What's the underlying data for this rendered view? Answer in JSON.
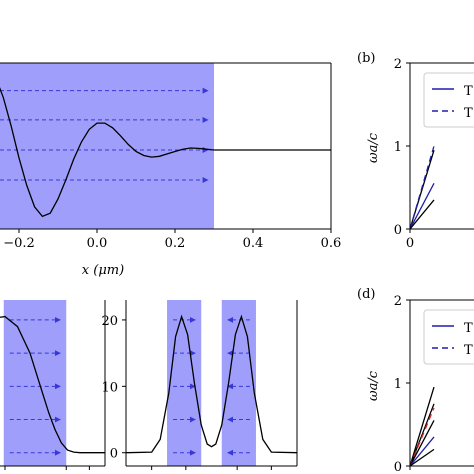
{
  "chart_data": [
    {
      "id": "top-left",
      "type": "line",
      "xlabel": "x (μm)",
      "xlim": [
        -0.3,
        0.6
      ],
      "ylim": [
        -1.0,
        1.1
      ],
      "x_ticks": [
        -0.2,
        0.0,
        0.2,
        0.4,
        0.6
      ],
      "x_tick_labels": [
        "−0.2",
        "0.0",
        "0.2",
        "0.4",
        "0.6"
      ],
      "shaded_regions": [
        [
          -0.3,
          0.3
        ]
      ],
      "arrow_direction": "right",
      "arrow_rows_y": [
        0.75,
        0.38,
        0.0,
        -0.38
      ],
      "series": [
        {
          "x": [
            -0.3,
            -0.28,
            -0.26,
            -0.24,
            -0.22,
            -0.2,
            -0.18,
            -0.16,
            -0.14,
            -0.12,
            -0.1,
            -0.08,
            -0.06,
            -0.04,
            -0.02,
            0.0,
            0.02,
            0.04,
            0.06,
            0.08,
            0.1,
            0.12,
            0.14,
            0.16,
            0.18,
            0.2,
            0.22,
            0.24,
            0.26,
            0.28,
            0.3,
            0.32,
            0.34,
            0.4,
            0.5,
            0.6
          ],
          "y": [
            0.68,
            1.0,
            0.92,
            0.66,
            0.3,
            -0.1,
            -0.45,
            -0.72,
            -0.84,
            -0.8,
            -0.62,
            -0.38,
            -0.12,
            0.1,
            0.26,
            0.34,
            0.34,
            0.28,
            0.18,
            0.07,
            -0.02,
            -0.07,
            -0.09,
            -0.08,
            -0.05,
            -0.02,
            0.01,
            0.025,
            0.02,
            0.01,
            0.0,
            0.0,
            0.0,
            0.0,
            0.0,
            0.0
          ]
        }
      ]
    },
    {
      "id": "bottom-left",
      "type": "line",
      "xlim": [
        -1.0,
        1.0
      ],
      "ylim": [
        -2,
        23
      ],
      "shaded_regions": [
        [
          -0.62,
          0.38
        ]
      ],
      "arrow_direction": "right",
      "arrow_rows_y": [
        20,
        15,
        10,
        5,
        0
      ],
      "series": [
        {
          "x": [
            -1.0,
            -0.6,
            -0.4,
            -0.2,
            0.0,
            0.1,
            0.2,
            0.3,
            0.4,
            0.5,
            0.6,
            1.0
          ],
          "y": [
            20,
            20.5,
            19,
            15,
            9,
            6,
            3.5,
            1.5,
            0.4,
            0.1,
            0.0,
            0.0
          ]
        }
      ]
    },
    {
      "id": "bottom-middle",
      "type": "line",
      "xlim": [
        -1.0,
        1.0
      ],
      "ylim": [
        -2,
        23
      ],
      "y_ticks": [
        0,
        10,
        20
      ],
      "y_tick_labels": [
        "0",
        "10",
        "20"
      ],
      "shaded_regions": [
        [
          -0.52,
          -0.12
        ],
        [
          0.12,
          0.52
        ]
      ],
      "arrow_direction": [
        "right",
        "left"
      ],
      "arrow_rows_y": [
        20,
        15,
        10,
        5,
        0
      ],
      "series": [
        {
          "x": [
            -1.0,
            -0.7,
            -0.6,
            -0.5,
            -0.42,
            -0.35,
            -0.28,
            -0.2,
            -0.12,
            -0.05,
            0.0,
            0.05,
            0.12,
            0.2,
            0.28,
            0.35,
            0.42,
            0.5,
            0.6,
            0.7,
            1.0
          ],
          "y": [
            0.0,
            0.1,
            2.0,
            9.0,
            17.5,
            20.5,
            17.8,
            10.5,
            4.2,
            1.3,
            0.9,
            1.3,
            4.2,
            10.5,
            17.8,
            20.5,
            17.5,
            9.0,
            2.0,
            0.1,
            0.0
          ]
        }
      ]
    },
    {
      "id": "panel-b",
      "type": "line",
      "label": "(b)",
      "ylabel": "ωa/c",
      "xlim": [
        0,
        1
      ],
      "ylim": [
        0,
        2
      ],
      "y_ticks": [
        0,
        1,
        2
      ],
      "y_tick_labels": [
        "0",
        "1",
        "2"
      ],
      "x_ticks": [
        0
      ],
      "x_tick_labels": [
        "0"
      ],
      "legend_entries": [
        "T",
        "T"
      ],
      "series": [
        {
          "style": "solid",
          "color": "#000000",
          "x": [
            0,
            0.3
          ],
          "y": [
            0,
            0.95
          ]
        },
        {
          "style": "solid",
          "color": "#1f1fa8",
          "x": [
            0,
            0.3
          ],
          "y": [
            0,
            0.55
          ]
        },
        {
          "style": "dashed",
          "color": "#1f1fa8",
          "x": [
            0,
            0.3
          ],
          "y": [
            0,
            1.0
          ]
        },
        {
          "style": "solid",
          "color": "#000000",
          "x": [
            0,
            0.3
          ],
          "y": [
            0,
            0.35
          ]
        }
      ]
    },
    {
      "id": "panel-d",
      "type": "line",
      "label": "(d)",
      "ylabel": "ωa/c",
      "xlim": [
        0,
        1
      ],
      "ylim": [
        0,
        2
      ],
      "y_ticks": [
        0,
        1,
        2
      ],
      "y_tick_labels": [
        "0",
        "1",
        "2"
      ],
      "x_ticks": [
        0
      ],
      "x_tick_labels": [
        "0"
      ],
      "legend_entries": [
        "T",
        "T"
      ],
      "series": [
        {
          "style": "solid",
          "color": "#000000",
          "x": [
            0,
            0.3
          ],
          "y": [
            0,
            0.95
          ]
        },
        {
          "style": "solid",
          "color": "#000000",
          "x": [
            0,
            0.3
          ],
          "y": [
            0,
            0.75
          ]
        },
        {
          "style": "dashed",
          "color": "#d62728",
          "x": [
            0,
            0.3
          ],
          "y": [
            0,
            0.7
          ]
        },
        {
          "style": "solid",
          "color": "#000000",
          "x": [
            0,
            0.3
          ],
          "y": [
            0,
            0.55
          ]
        },
        {
          "style": "solid",
          "color": "#1f1fa8",
          "x": [
            0,
            0.3
          ],
          "y": [
            0,
            0.35
          ]
        },
        {
          "style": "solid",
          "color": "#000000",
          "x": [
            0,
            0.3
          ],
          "y": [
            0,
            0.2
          ]
        }
      ]
    }
  ],
  "colors": {
    "shade": "#9f9ffb",
    "arrow": "#3838d8",
    "curve": "#000000",
    "blue": "#1f1fa8",
    "red": "#d62728"
  }
}
